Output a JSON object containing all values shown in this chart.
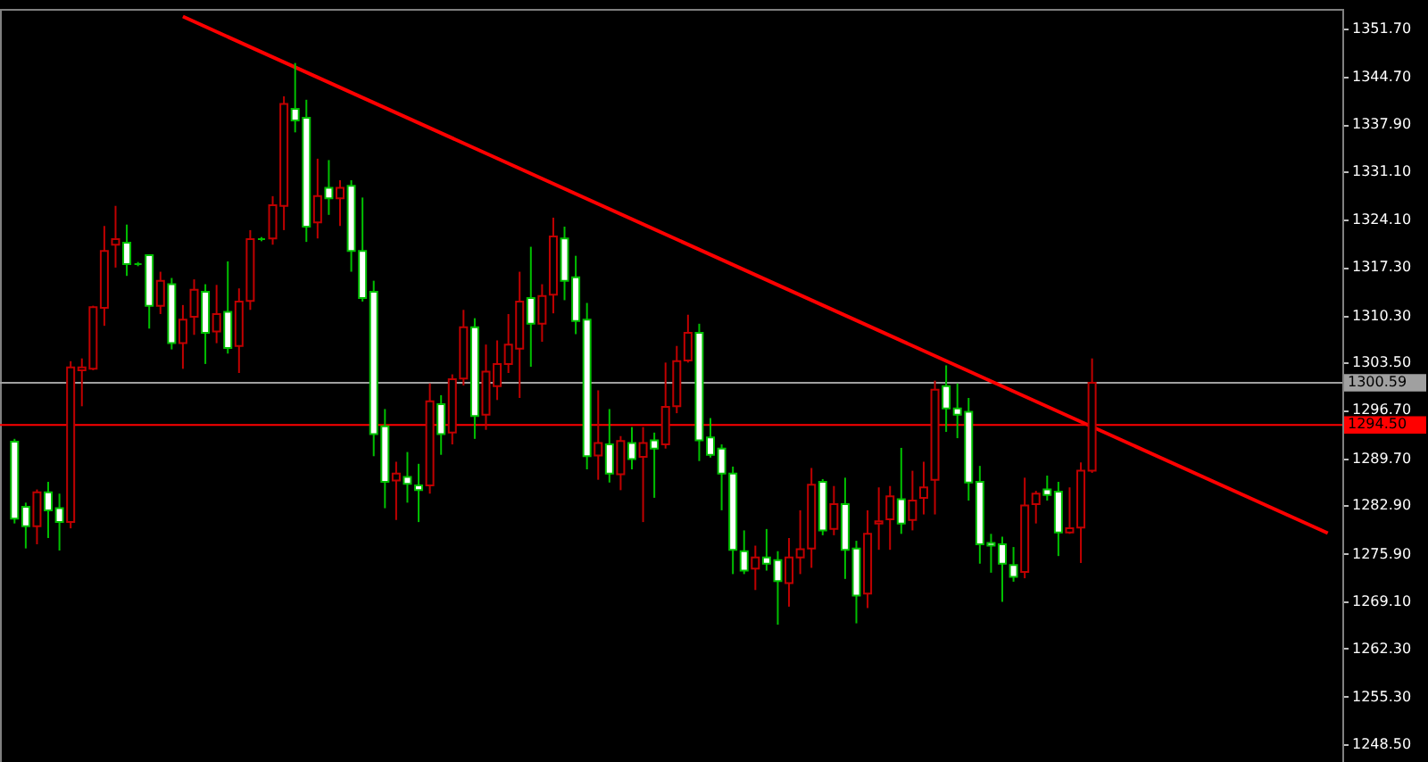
{
  "chart_data": {
    "type": "candlestick",
    "categories": [
      null,
      null,
      null,
      null,
      null,
      null,
      null,
      null,
      null,
      null,
      null,
      null,
      null,
      null,
      null,
      null,
      null,
      null,
      null,
      null,
      null,
      null,
      null,
      null,
      null,
      null,
      null,
      null,
      null,
      null,
      null,
      null,
      null,
      null,
      null,
      null,
      null,
      null,
      null,
      null,
      null,
      null,
      null,
      null,
      null,
      null,
      null,
      null,
      null,
      null,
      null,
      null,
      null,
      null,
      null,
      null,
      null,
      null,
      null,
      null,
      null,
      null,
      null,
      null,
      null,
      null,
      null,
      null,
      null,
      null,
      null,
      null,
      null,
      null,
      null,
      null,
      null,
      null,
      null,
      null,
      null,
      null,
      null,
      null,
      null,
      null,
      null,
      null,
      null,
      null,
      null,
      null,
      null,
      null,
      null,
      null,
      null,
      null,
      null,
      null,
      null,
      null,
      null,
      null,
      null,
      null,
      null,
      null,
      null,
      null,
      null,
      null,
      null,
      null,
      null,
      null,
      null,
      null
    ],
    "ohlc": [
      [
        1292.1,
        1292.5,
        1280.3,
        1281.0
      ],
      [
        1282.7,
        1283.3,
        1276.7,
        1279.9
      ],
      [
        1279.9,
        1285.2,
        1277.3,
        1284.8
      ],
      [
        1284.8,
        1286.3,
        1278.2,
        1282.2
      ],
      [
        1282.5,
        1284.6,
        1276.4,
        1280.5
      ],
      [
        1280.5,
        1303.7,
        1279.6,
        1302.8
      ],
      [
        1302.4,
        1304.1,
        1297.2,
        1302.8
      ],
      [
        1302.6,
        1311.7,
        1302.4,
        1311.5
      ],
      [
        1311.4,
        1323.2,
        1308.8,
        1319.6
      ],
      [
        1320.5,
        1326.1,
        1317.2,
        1321.3
      ],
      [
        1320.8,
        1323.4,
        1316.0,
        1317.7
      ],
      [
        1317.7,
        1318.0,
        1317.4,
        1317.7
      ],
      [
        1319.0,
        1319.0,
        1308.4,
        1311.7
      ],
      [
        1311.7,
        1316.6,
        1310.5,
        1315.3
      ],
      [
        1314.8,
        1315.7,
        1305.4,
        1306.3
      ],
      [
        1306.3,
        1311.8,
        1302.6,
        1309.7
      ],
      [
        1310.1,
        1315.5,
        1307.5,
        1314.0
      ],
      [
        1313.7,
        1314.8,
        1303.3,
        1307.8
      ],
      [
        1308.0,
        1314.7,
        1306.3,
        1310.5
      ],
      [
        1310.8,
        1318.1,
        1304.8,
        1305.6
      ],
      [
        1305.9,
        1314.2,
        1302.0,
        1312.3
      ],
      [
        1312.4,
        1322.6,
        1311.1,
        1321.3
      ],
      [
        1321.3,
        1321.6,
        1321.0,
        1321.3
      ],
      [
        1321.4,
        1327.5,
        1320.5,
        1326.2
      ],
      [
        1326.1,
        1341.9,
        1322.6,
        1340.8
      ],
      [
        1340.1,
        1346.7,
        1336.7,
        1338.4
      ],
      [
        1338.8,
        1341.4,
        1320.9,
        1323.1
      ],
      [
        1323.7,
        1332.9,
        1321.4,
        1327.5
      ],
      [
        1328.7,
        1332.7,
        1324.8,
        1327.2
      ],
      [
        1327.2,
        1329.8,
        1323.2,
        1328.7
      ],
      [
        1329.0,
        1329.8,
        1316.6,
        1319.6
      ],
      [
        1319.6,
        1327.3,
        1312.3,
        1312.8
      ],
      [
        1313.7,
        1315.3,
        1290.0,
        1293.2
      ],
      [
        1294.3,
        1296.8,
        1282.5,
        1286.3
      ],
      [
        1286.5,
        1289.2,
        1280.8,
        1287.5
      ],
      [
        1287.0,
        1290.6,
        1283.3,
        1286.0
      ],
      [
        1285.8,
        1288.9,
        1280.5,
        1285.1
      ],
      [
        1285.8,
        1300.5,
        1284.6,
        1297.9
      ],
      [
        1297.5,
        1298.8,
        1290.2,
        1293.2
      ],
      [
        1293.4,
        1301.8,
        1291.7,
        1301.1
      ],
      [
        1301.2,
        1311.1,
        1300.2,
        1308.6
      ],
      [
        1308.6,
        1309.9,
        1292.5,
        1295.8
      ],
      [
        1296.0,
        1306.1,
        1293.8,
        1302.2
      ],
      [
        1300.1,
        1306.7,
        1298.1,
        1303.3
      ],
      [
        1303.3,
        1310.5,
        1302.0,
        1306.1
      ],
      [
        1305.5,
        1316.6,
        1298.4,
        1312.3
      ],
      [
        1312.8,
        1320.2,
        1302.9,
        1309.1
      ],
      [
        1309.1,
        1314.8,
        1306.5,
        1313.1
      ],
      [
        1313.3,
        1324.4,
        1310.6,
        1321.7
      ],
      [
        1321.4,
        1323.1,
        1312.5,
        1315.3
      ],
      [
        1315.8,
        1318.9,
        1307.6,
        1309.5
      ],
      [
        1309.7,
        1312.1,
        1288.1,
        1290.0
      ],
      [
        1290.1,
        1299.5,
        1286.6,
        1291.9
      ],
      [
        1291.7,
        1296.8,
        1286.2,
        1287.5
      ],
      [
        1287.4,
        1292.9,
        1285.1,
        1292.2
      ],
      [
        1291.9,
        1294.2,
        1288.1,
        1289.6
      ],
      [
        1289.9,
        1294.2,
        1280.5,
        1291.9
      ],
      [
        1292.3,
        1293.4,
        1284.0,
        1291.1
      ],
      [
        1291.7,
        1303.5,
        1291.1,
        1297.1
      ],
      [
        1297.2,
        1305.9,
        1296.2,
        1303.7
      ],
      [
        1303.8,
        1310.4,
        1303.5,
        1307.8
      ],
      [
        1307.8,
        1309.1,
        1289.3,
        1292.3
      ],
      [
        1292.7,
        1295.5,
        1289.8,
        1290.2
      ],
      [
        1291.1,
        1291.7,
        1282.2,
        1287.5
      ],
      [
        1287.5,
        1288.5,
        1273.0,
        1276.5
      ],
      [
        1276.3,
        1279.3,
        1273.0,
        1273.5
      ],
      [
        1273.8,
        1277.1,
        1270.7,
        1275.4
      ],
      [
        1275.4,
        1279.5,
        1273.5,
        1274.5
      ],
      [
        1275.0,
        1276.3,
        1265.7,
        1272.0
      ],
      [
        1271.7,
        1278.2,
        1268.3,
        1275.4
      ],
      [
        1275.4,
        1282.2,
        1273.0,
        1276.6
      ],
      [
        1276.7,
        1288.3,
        1273.9,
        1285.9
      ],
      [
        1286.3,
        1286.7,
        1278.6,
        1279.3
      ],
      [
        1279.5,
        1285.7,
        1278.6,
        1283.1
      ],
      [
        1283.1,
        1286.9,
        1272.3,
        1276.5
      ],
      [
        1276.7,
        1277.8,
        1265.9,
        1269.9
      ],
      [
        1270.2,
        1282.2,
        1268.1,
        1278.8
      ],
      [
        1280.3,
        1285.5,
        1276.5,
        1280.6
      ],
      [
        1280.9,
        1285.7,
        1276.5,
        1284.2
      ],
      [
        1283.8,
        1291.2,
        1278.8,
        1280.3
      ],
      [
        1280.8,
        1287.9,
        1279.3,
        1283.6
      ],
      [
        1284.0,
        1289.2,
        1281.6,
        1285.5
      ],
      [
        1286.6,
        1300.9,
        1281.6,
        1299.6
      ],
      [
        1300.1,
        1303.1,
        1293.5,
        1296.9
      ],
      [
        1296.9,
        1300.5,
        1292.6,
        1296.0
      ],
      [
        1296.4,
        1298.4,
        1283.6,
        1286.2
      ],
      [
        1286.3,
        1288.6,
        1274.5,
        1277.3
      ],
      [
        1277.5,
        1278.8,
        1273.2,
        1277.1
      ],
      [
        1277.3,
        1278.4,
        1269.0,
        1274.5
      ],
      [
        1274.3,
        1276.9,
        1271.9,
        1272.6
      ],
      [
        1273.3,
        1286.9,
        1272.4,
        1282.9
      ],
      [
        1283.1,
        1285.0,
        1280.3,
        1284.6
      ],
      [
        1285.2,
        1287.2,
        1283.6,
        1284.4
      ],
      [
        1284.9,
        1286.3,
        1275.6,
        1279.0
      ],
      [
        1279.0,
        1285.5,
        1278.8,
        1279.6
      ],
      [
        1279.7,
        1289.1,
        1274.6,
        1287.9
      ],
      [
        1287.9,
        1304.1,
        1287.6,
        1300.59
      ],
      null,
      null,
      null,
      null,
      null,
      null,
      null,
      null,
      null,
      null,
      null,
      null,
      null,
      null,
      null,
      null,
      null,
      null,
      null,
      null,
      null
    ],
    "colors": [
      "#00c000",
      "#00c000",
      "#c00000",
      "#00c000",
      "#00c000",
      "#c00000",
      "#c00000",
      "#c00000",
      "#c00000",
      "#c00000",
      "#00c000",
      "#00c000",
      "#00c000",
      "#c00000",
      "#00c000",
      "#c00000",
      "#c00000",
      "#00c000",
      "#c00000",
      "#00c000",
      "#c00000",
      "#c00000",
      "#00c000",
      "#c00000",
      "#c00000",
      "#00c000",
      "#00c000",
      "#c00000",
      "#00c000",
      "#c00000",
      "#00c000",
      "#00c000",
      "#00c000",
      "#00c000",
      "#c00000",
      "#00c000",
      "#00c000",
      "#c00000",
      "#00c000",
      "#c00000",
      "#c00000",
      "#00c000",
      "#c00000",
      "#c00000",
      "#c00000",
      "#c00000",
      "#00c000",
      "#c00000",
      "#c00000",
      "#00c000",
      "#00c000",
      "#00c000",
      "#c00000",
      "#00c000",
      "#c00000",
      "#00c000",
      "#c00000",
      "#00c000",
      "#c00000",
      "#c00000",
      "#c00000",
      "#00c000",
      "#00c000",
      "#00c000",
      "#00c000",
      "#00c000",
      "#c00000",
      "#00c000",
      "#00c000",
      "#c00000",
      "#c00000",
      "#c00000",
      "#00c000",
      "#c00000",
      "#00c000",
      "#00c000",
      "#c00000",
      "#c00000",
      "#c00000",
      "#00c000",
      "#c00000",
      "#c00000",
      "#c00000",
      "#00c000",
      "#00c000",
      "#00c000",
      "#00c000",
      "#00c000",
      "#00c000",
      "#00c000",
      "#c00000",
      "#c00000",
      "#00c000",
      "#00c000",
      "#c00000",
      "#c00000",
      "#c00000",
      null,
      null,
      null,
      null,
      null,
      null,
      null,
      null,
      null,
      null,
      null,
      null,
      null,
      null,
      null,
      null,
      null,
      null,
      null,
      null,
      null
    ],
    "series": [
      {
        "type": "line",
        "color": "#ff0000",
        "values": [
          null,
          null,
          null,
          null,
          null,
          null,
          null,
          null,
          null,
          null,
          null,
          null,
          null,
          null,
          null,
          1353.4,
          null,
          null,
          null,
          null,
          null,
          null,
          null,
          null,
          null,
          null,
          null,
          null,
          null,
          null,
          null,
          null,
          null,
          null,
          null,
          null,
          null,
          null,
          null,
          null,
          null,
          null,
          null,
          null,
          null,
          null,
          null,
          null,
          null,
          null,
          null,
          null,
          null,
          null,
          null,
          null,
          null,
          null,
          null,
          null,
          null,
          null,
          null,
          null,
          null,
          null,
          null,
          null,
          null,
          null,
          null,
          null,
          null,
          null,
          null,
          null,
          null,
          null,
          null,
          null,
          null,
          null,
          null,
          null,
          null,
          null,
          null,
          null,
          null,
          null,
          null,
          null,
          null,
          null,
          null,
          null,
          null,
          null,
          null,
          null,
          null,
          null,
          null,
          null,
          null,
          null,
          null,
          null,
          null,
          null,
          null,
          null,
          null,
          null,
          null,
          null,
          null,
          1278.9
        ]
      }
    ],
    "ylim": [
      1245.9,
      1354.5
    ],
    "yticks": [
      {
        "value": 1351.7,
        "label": "1351.70"
      },
      {
        "value": 1344.7,
        "label": "1344.70"
      },
      {
        "value": 1337.9,
        "label": "1337.90"
      },
      {
        "value": 1331.1,
        "label": "1331.10"
      },
      {
        "value": 1324.1,
        "label": "1324.10"
      },
      {
        "value": 1317.3,
        "label": "1317.30"
      },
      {
        "value": 1310.3,
        "label": "1310.30"
      },
      {
        "value": 1303.5,
        "label": "1303.50"
      },
      {
        "value": 1296.7,
        "label": "1296.70"
      },
      {
        "value": 1289.7,
        "label": "1289.70"
      },
      {
        "value": 1282.9,
        "label": "1282.90"
      },
      {
        "value": 1275.9,
        "label": "1275.90"
      },
      {
        "value": 1269.1,
        "label": "1269.10"
      },
      {
        "value": 1262.3,
        "label": "1262.30"
      },
      {
        "value": 1255.3,
        "label": "1255.30"
      },
      {
        "value": 1248.5,
        "label": "1248.50"
      }
    ],
    "ref_lines": [
      {
        "axis": "y",
        "value": 1300.59,
        "label": "1300.59",
        "color": "#a0a0a0"
      },
      {
        "axis": "y",
        "value": 1294.5,
        "label": "1294.50",
        "color": "#ff0000"
      }
    ],
    "tick_labels": "y"
  }
}
